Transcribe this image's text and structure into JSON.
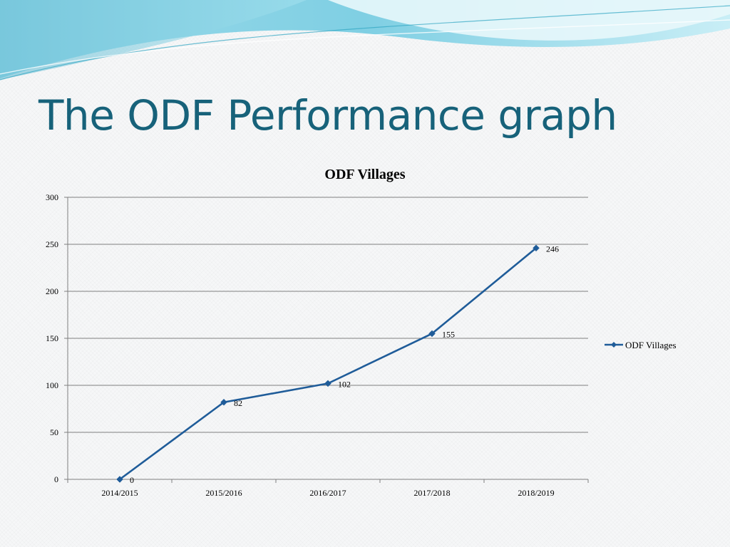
{
  "slide": {
    "title": "The ODF Performance graph"
  },
  "colors": {
    "title": "#17627a",
    "series": "#1f5c99",
    "wave_light": "#bfe9f3",
    "wave_mid": "#7fd3e6",
    "wave_dark": "#3fb0cc"
  },
  "chart_data": {
    "type": "line",
    "title": "ODF Villages",
    "xlabel": "",
    "ylabel": "",
    "categories": [
      "2014/2015",
      "2015/2016",
      "2016/2017",
      "2017/2018",
      "2018/2019"
    ],
    "series": [
      {
        "name": "ODF Villages",
        "values": [
          0,
          82,
          102,
          155,
          246
        ],
        "marker": "diamond"
      }
    ],
    "ylim": [
      0,
      300
    ],
    "yticks": [
      0,
      50,
      100,
      150,
      200,
      250,
      300
    ],
    "grid": true,
    "legend": "right",
    "data_labels": true
  }
}
